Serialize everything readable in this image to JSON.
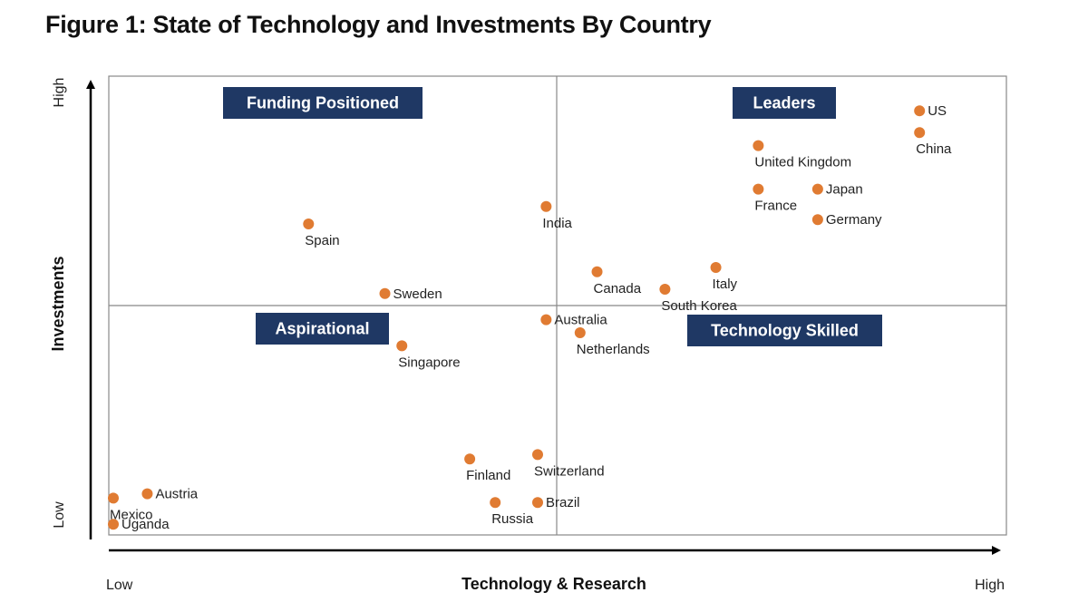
{
  "title": "Figure 1: State of Technology and Investments By Country",
  "colors": {
    "point": "#e07b32",
    "quadrant_box": "#1f3864",
    "grid": "#888888",
    "axis": "#000000"
  },
  "chart_data": {
    "type": "scatter",
    "title": "Figure 1: State of Technology and Investments By Country",
    "xlabel": "Technology & Research",
    "ylabel": "Investments",
    "x_low_label": "Low",
    "x_high_label": "High",
    "y_low_label": "Low",
    "y_high_label": "High",
    "xlim": [
      0,
      100
    ],
    "ylim": [
      0,
      100
    ],
    "quadrants": [
      {
        "name": "Funding Positioned",
        "position": "top-left"
      },
      {
        "name": "Leaders",
        "position": "top-right"
      },
      {
        "name": "Aspirational",
        "position": "bottom-left"
      },
      {
        "name": "Technology Skilled",
        "position": "bottom-right"
      }
    ],
    "points": [
      {
        "label": "US",
        "x": 95,
        "y": 96,
        "label_pos": "right"
      },
      {
        "label": "China",
        "x": 95,
        "y": 91,
        "label_pos": "below"
      },
      {
        "label": "United Kingdom",
        "x": 76,
        "y": 88,
        "label_pos": "below"
      },
      {
        "label": "France",
        "x": 76,
        "y": 78,
        "label_pos": "below"
      },
      {
        "label": "Japan",
        "x": 83,
        "y": 78,
        "label_pos": "right"
      },
      {
        "label": "Germany",
        "x": 83,
        "y": 71,
        "label_pos": "right"
      },
      {
        "label": "India",
        "x": 51,
        "y": 74,
        "label_pos": "below"
      },
      {
        "label": "Spain",
        "x": 23,
        "y": 70,
        "label_pos": "below"
      },
      {
        "label": "Italy",
        "x": 71,
        "y": 60,
        "label_pos": "below"
      },
      {
        "label": "Canada",
        "x": 57,
        "y": 59,
        "label_pos": "below"
      },
      {
        "label": "South Korea",
        "x": 65,
        "y": 55,
        "label_pos": "below"
      },
      {
        "label": "Sweden",
        "x": 32,
        "y": 54,
        "label_pos": "right"
      },
      {
        "label": "Australia",
        "x": 51,
        "y": 48,
        "label_pos": "right"
      },
      {
        "label": "Netherlands",
        "x": 55,
        "y": 45,
        "label_pos": "below"
      },
      {
        "label": "Singapore",
        "x": 34,
        "y": 42,
        "label_pos": "below"
      },
      {
        "label": "Switzerland",
        "x": 50,
        "y": 17,
        "label_pos": "below"
      },
      {
        "label": "Finland",
        "x": 42,
        "y": 16,
        "label_pos": "below"
      },
      {
        "label": "Brazil",
        "x": 50,
        "y": 6,
        "label_pos": "right"
      },
      {
        "label": "Russia",
        "x": 45,
        "y": 6,
        "label_pos": "below"
      },
      {
        "label": "Austria",
        "x": 4,
        "y": 8,
        "label_pos": "right"
      },
      {
        "label": "Mexico",
        "x": 0,
        "y": 7,
        "label_pos": "below"
      },
      {
        "label": "Uganda",
        "x": 0,
        "y": 1,
        "label_pos": "right"
      }
    ]
  }
}
